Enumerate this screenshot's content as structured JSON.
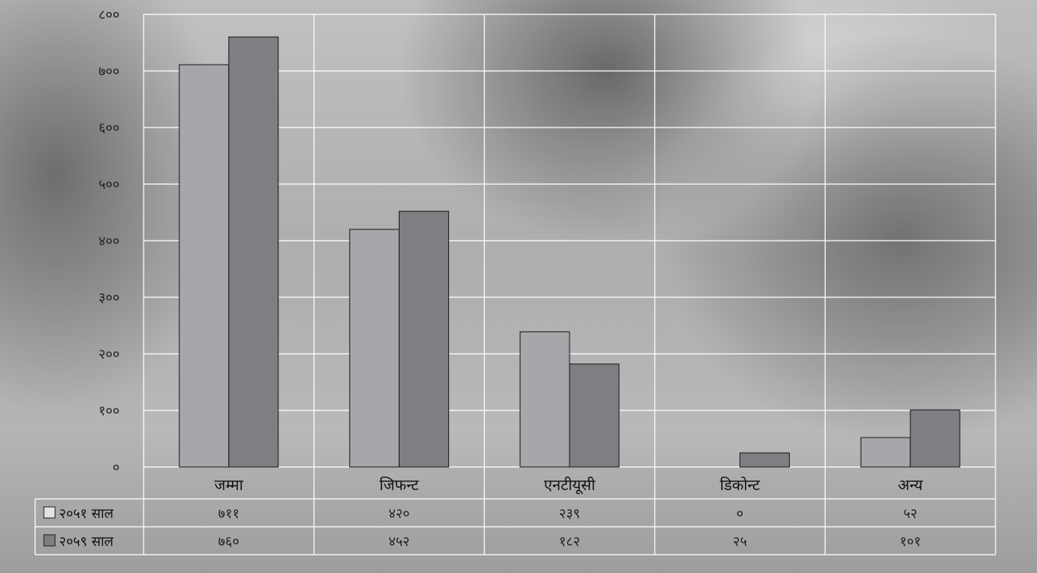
{
  "chart_data": {
    "type": "bar",
    "categories": [
      "जम्मा",
      "जिफन्ट",
      "एनटीयूसी",
      "डिकोन्ट",
      "अन्य"
    ],
    "series": [
      {
        "name": "२०५१ साल",
        "values": [
          711,
          420,
          239,
          0,
          52
        ],
        "value_labels": [
          "७११",
          "४२०",
          "२३९",
          "०",
          "५२"
        ],
        "color": "#a7a7ab"
      },
      {
        "name": "२०५९ साल",
        "values": [
          760,
          452,
          182,
          25,
          101
        ],
        "value_labels": [
          "७६०",
          "४५२",
          "१८२",
          "२५",
          "१०१"
        ],
        "color": "#7e7e83"
      }
    ],
    "ylim": [
      0,
      800
    ],
    "yticks": [
      0,
      100,
      200,
      300,
      400,
      500,
      600,
      700,
      800
    ],
    "ytick_labels": [
      "०",
      "१००",
      "२००",
      "३००",
      "४००",
      "५००",
      "६००",
      "७००",
      "८००"
    ],
    "grid": true,
    "legend": "data-table-below",
    "title": "",
    "xlabel": "",
    "ylabel": ""
  }
}
